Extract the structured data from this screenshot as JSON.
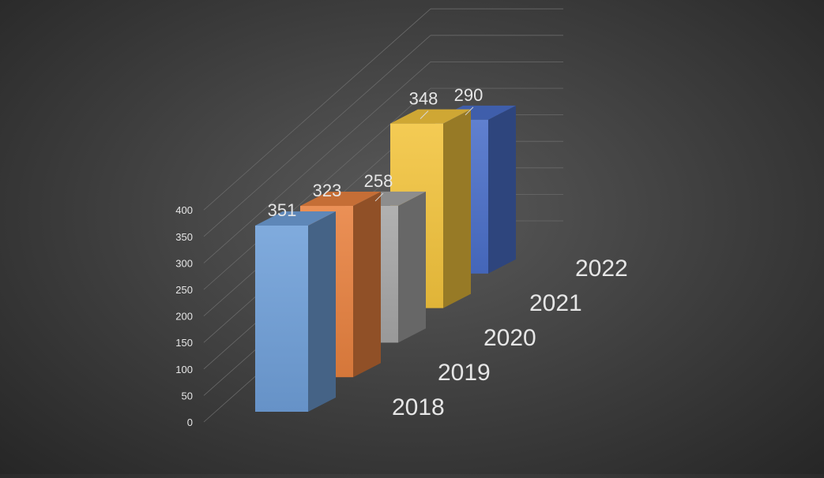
{
  "chart_data": {
    "type": "bar",
    "subtype": "3d-column",
    "categories": [
      "2018",
      "2019",
      "2020",
      "2021",
      "2022"
    ],
    "values": [
      351,
      323,
      258,
      348,
      290
    ],
    "data_labels": [
      "351",
      "323",
      "258",
      "348",
      "290"
    ],
    "title": "",
    "xlabel": "",
    "ylabel": "",
    "ylim": [
      0,
      400
    ],
    "yticks": [
      0,
      50,
      100,
      150,
      200,
      250,
      300,
      350,
      400
    ],
    "grid": true,
    "legend": "none",
    "colors": [
      "#6f9fd8",
      "#e8813f",
      "#a6a6a6",
      "#f3c43d",
      "#4a6fc9"
    ],
    "background": "#3d3d3d",
    "text_color": "#e6e6e6"
  }
}
